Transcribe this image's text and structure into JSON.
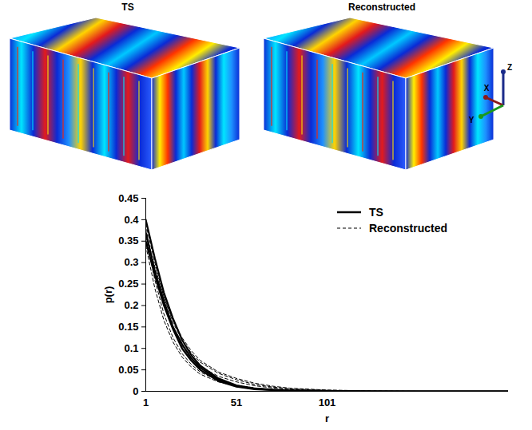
{
  "volumes": {
    "panels": [
      {
        "title": "TS"
      },
      {
        "title": "Reconstructed"
      }
    ],
    "axes_triad": [
      "X",
      "Y",
      "Z"
    ]
  },
  "chart_data": {
    "type": "line",
    "x_label": "r",
    "y_label": "p(r)",
    "x": [
      1,
      6,
      11,
      16,
      21,
      26,
      31,
      41,
      51,
      61,
      71,
      81,
      101,
      126,
      151,
      176,
      201
    ],
    "xlim": [
      1,
      201
    ],
    "xticks": [
      1,
      51,
      101
    ],
    "ylim": [
      0,
      0.45
    ],
    "yticks": [
      0,
      0.05,
      0.1,
      0.15,
      0.2,
      0.25,
      0.3,
      0.35,
      0.4,
      0.45
    ],
    "legend": "top-right",
    "grid": false,
    "series": [
      {
        "name": "TS",
        "color": "#000000",
        "line_style": "solid",
        "values": [
          0.4,
          0.31,
          0.23,
          0.17,
          0.12,
          0.085,
          0.06,
          0.03,
          0.014,
          0.007,
          0.004,
          0.002,
          0.001,
          0,
          0,
          0,
          0
        ]
      },
      {
        "name": "TS",
        "color": "#000000",
        "line_style": "solid",
        "values": [
          0.37,
          0.28,
          0.21,
          0.15,
          0.11,
          0.078,
          0.055,
          0.027,
          0.012,
          0.006,
          0.003,
          0.002,
          0.0005,
          0,
          0,
          0,
          0
        ]
      },
      {
        "name": "TS",
        "color": "#000000",
        "line_style": "solid",
        "values": [
          0.35,
          0.27,
          0.2,
          0.145,
          0.1,
          0.072,
          0.05,
          0.024,
          0.011,
          0.005,
          0.003,
          0.001,
          0,
          0,
          0,
          0,
          0
        ]
      },
      {
        "name": "Reconstructed",
        "color": "#000000",
        "line_style": "dashed",
        "values": [
          0.39,
          0.3,
          0.22,
          0.16,
          0.12,
          0.09,
          0.068,
          0.042,
          0.027,
          0.016,
          0.01,
          0.006,
          0.002,
          0.001,
          0,
          0,
          0
        ]
      },
      {
        "name": "Reconstructed",
        "color": "#000000",
        "line_style": "dashed",
        "values": [
          0.38,
          0.28,
          0.2,
          0.145,
          0.105,
          0.078,
          0.058,
          0.035,
          0.022,
          0.013,
          0.008,
          0.004,
          0.001,
          0,
          0,
          0,
          0
        ]
      },
      {
        "name": "Reconstructed",
        "color": "#000000",
        "line_style": "dashed",
        "values": [
          0.36,
          0.26,
          0.18,
          0.125,
          0.088,
          0.063,
          0.045,
          0.025,
          0.014,
          0.008,
          0.004,
          0.002,
          0.001,
          0,
          0,
          0,
          0
        ]
      },
      {
        "name": "Reconstructed",
        "color": "#000000",
        "line_style": "dashed",
        "values": [
          0.34,
          0.24,
          0.165,
          0.115,
          0.08,
          0.057,
          0.04,
          0.022,
          0.012,
          0.007,
          0.004,
          0.002,
          0,
          0,
          0,
          0,
          0
        ]
      },
      {
        "name": "Reconstructed",
        "color": "#000000",
        "line_style": "dashed",
        "values": [
          0.37,
          0.29,
          0.22,
          0.165,
          0.125,
          0.095,
          0.072,
          0.045,
          0.03,
          0.019,
          0.012,
          0.007,
          0.003,
          0.001,
          0,
          0,
          0
        ]
      }
    ]
  }
}
